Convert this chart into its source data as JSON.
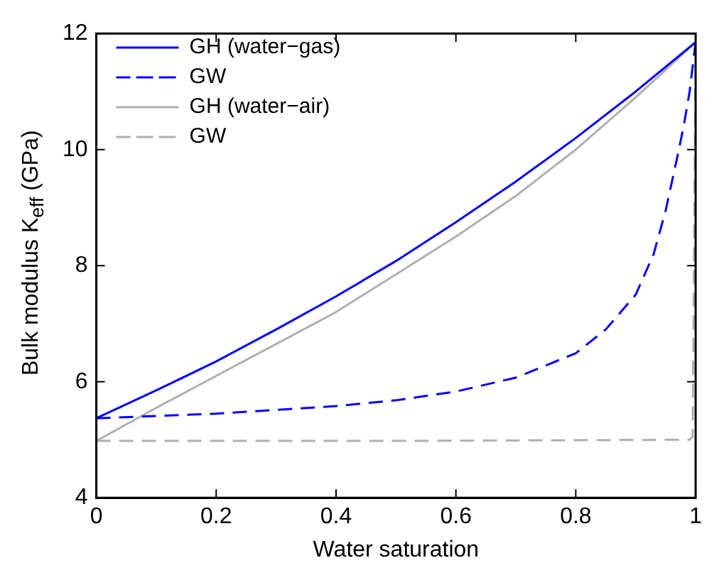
{
  "chart_data": {
    "type": "line",
    "xlabel": "Water saturation",
    "ylabel": "Bulk modulus K$_{eff}$ (GPa)",
    "xlim": [
      0,
      1
    ],
    "xticks": [
      0,
      0.2,
      0.4,
      0.6,
      0.8,
      1
    ],
    "ylim": [
      4,
      12
    ],
    "yticks": [
      4,
      6,
      8,
      10,
      12
    ],
    "grid": false,
    "legend": "top left",
    "marker": "none",
    "series": [
      {
        "name": "GH (water−gas)",
        "color": "#0000ff",
        "line_style": "solid",
        "x": [
          0,
          0.1,
          0.2,
          0.3,
          0.4,
          0.5,
          0.6,
          0.7,
          0.8,
          0.9,
          1
        ],
        "values": [
          5.37,
          5.85,
          6.35,
          6.9,
          7.47,
          8.08,
          8.75,
          9.45,
          10.2,
          11.0,
          11.85
        ]
      },
      {
        "name": "GW",
        "color": "#0000ff",
        "line_style": "dashed",
        "x": [
          0,
          0.2,
          0.4,
          0.5,
          0.6,
          0.7,
          0.8,
          0.85,
          0.9,
          0.93,
          0.95,
          0.97,
          0.98,
          0.99,
          1
        ],
        "values": [
          5.37,
          5.45,
          5.58,
          5.68,
          5.83,
          6.07,
          6.49,
          6.9,
          7.5,
          8.2,
          8.95,
          9.9,
          10.4,
          11.0,
          11.85
        ]
      },
      {
        "name": "GH (water−air)",
        "color": "#b0b0b0",
        "line_style": "solid",
        "x": [
          0,
          0.1,
          0.2,
          0.3,
          0.4,
          0.5,
          0.6,
          0.7,
          0.8,
          0.9,
          1
        ],
        "values": [
          4.98,
          5.55,
          6.1,
          6.65,
          7.2,
          7.85,
          8.5,
          9.2,
          10.0,
          10.9,
          11.85
        ]
      },
      {
        "name": "GW",
        "color": "#b0b0b0",
        "line_style": "dashed",
        "x": [
          0,
          0.5,
          0.99,
          0.995,
          1
        ],
        "values": [
          4.98,
          4.98,
          5.0,
          5.05,
          11.85
        ]
      }
    ]
  }
}
